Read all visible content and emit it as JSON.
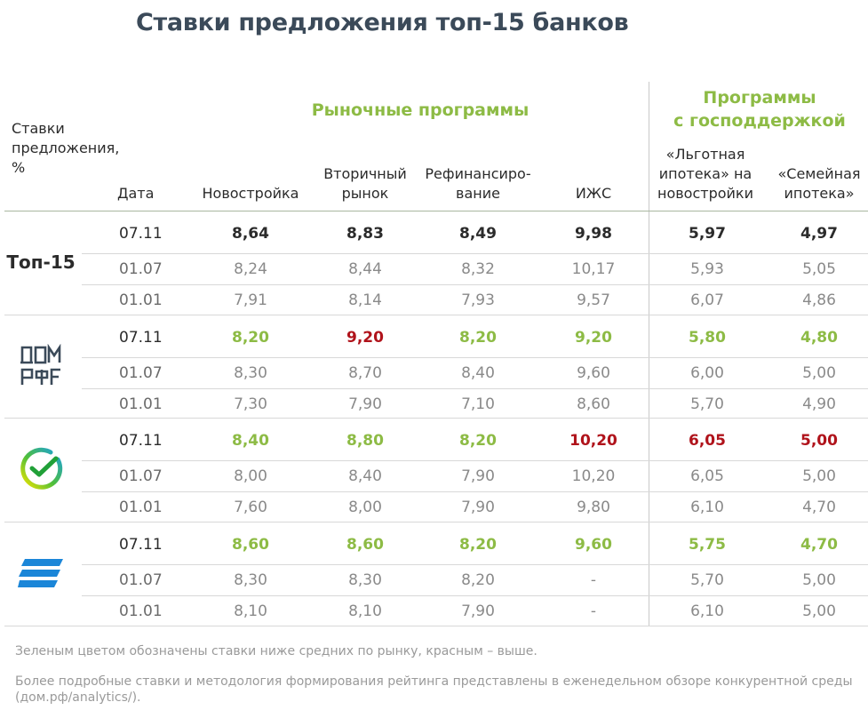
{
  "title": "Ставки предложения топ-15 банков",
  "groups": {
    "market": "Рыночные программы",
    "gov_line1": "Программы",
    "gov_line2": "с господдержкой"
  },
  "row_label": [
    "Ставки",
    "предложения,",
    "%"
  ],
  "columns": {
    "date": "Дата",
    "new": "Новостройка",
    "secondary_1": "Вторичный",
    "secondary_2": "рынок",
    "refi_1": "Рефинансиро-",
    "refi_2": "вание",
    "izhs": "ИЖС",
    "lgot_1": "«Льготная",
    "lgot_2": "ипотека» на",
    "lgot_3": "новостройки",
    "family_1": "«Семейная",
    "family_2": "ипотека»"
  },
  "banks": [
    {
      "name": "Топ-15",
      "icon": "top15-label",
      "rows": [
        {
          "date": "07.11",
          "values": [
            "8,64",
            "8,83",
            "8,49",
            "9,98",
            "5,97",
            "4,97"
          ],
          "status": [
            "cur",
            "cur",
            "cur",
            "cur",
            "cur",
            "cur"
          ]
        },
        {
          "date": "01.07",
          "values": [
            "8,24",
            "8,44",
            "8,32",
            "10,17",
            "5,93",
            "5,05"
          ],
          "status": [
            "old",
            "old",
            "old",
            "old",
            "old",
            "old"
          ]
        },
        {
          "date": "01.01",
          "values": [
            "7,91",
            "8,14",
            "7,93",
            "9,57",
            "6,07",
            "4,86"
          ],
          "status": [
            "old",
            "old",
            "old",
            "old",
            "old",
            "old"
          ]
        }
      ]
    },
    {
      "name": "",
      "icon": "dom-rf-logo-icon",
      "rows": [
        {
          "date": "07.11",
          "values": [
            "8,20",
            "9,20",
            "8,20",
            "9,20",
            "5,80",
            "4,80"
          ],
          "status": [
            "green",
            "red",
            "green",
            "green",
            "green",
            "green"
          ]
        },
        {
          "date": "01.07",
          "values": [
            "8,30",
            "8,70",
            "8,40",
            "9,60",
            "6,00",
            "5,00"
          ],
          "status": [
            "old",
            "old",
            "old",
            "old",
            "old",
            "old"
          ]
        },
        {
          "date": "01.01",
          "values": [
            "7,30",
            "7,90",
            "7,10",
            "8,60",
            "5,70",
            "4,90"
          ],
          "status": [
            "old",
            "old",
            "old",
            "old",
            "old",
            "old"
          ]
        }
      ]
    },
    {
      "name": "",
      "icon": "sber-logo-icon",
      "rows": [
        {
          "date": "07.11",
          "values": [
            "8,40",
            "8,80",
            "8,20",
            "10,20",
            "6,05",
            "5,00"
          ],
          "status": [
            "green",
            "green",
            "green",
            "red",
            "red",
            "red"
          ]
        },
        {
          "date": "01.07",
          "values": [
            "8,00",
            "8,40",
            "7,90",
            "10,20",
            "6,05",
            "5,00"
          ],
          "status": [
            "old",
            "old",
            "old",
            "old",
            "old",
            "old"
          ]
        },
        {
          "date": "01.01",
          "values": [
            "7,60",
            "8,00",
            "7,90",
            "9,80",
            "6,10",
            "4,70"
          ],
          "status": [
            "old",
            "old",
            "old",
            "old",
            "old",
            "old"
          ]
        }
      ]
    },
    {
      "name": "",
      "icon": "vtb-logo-icon",
      "rows": [
        {
          "date": "07.11",
          "values": [
            "8,60",
            "8,60",
            "8,20",
            "9,60",
            "5,75",
            "4,70"
          ],
          "status": [
            "green",
            "green",
            "green",
            "green",
            "green",
            "green"
          ]
        },
        {
          "date": "01.07",
          "values": [
            "8,30",
            "8,30",
            "8,20",
            "-",
            "5,70",
            "5,00"
          ],
          "status": [
            "old",
            "old",
            "old",
            "old",
            "old",
            "old"
          ]
        },
        {
          "date": "01.01",
          "values": [
            "8,10",
            "8,10",
            "7,90",
            "-",
            "6,10",
            "5,00"
          ],
          "status": [
            "old",
            "old",
            "old",
            "old",
            "old",
            "old"
          ]
        }
      ]
    }
  ],
  "notes": {
    "legend": "Зеленым цветом обозначены ставки ниже средних по рынку, красным – выше.",
    "more_1": "Более подробные ставки и методология формирования рейтинга представлены в еженедельном обзоре конкурентной среды",
    "more_2": "(дом.рф/analytics/)."
  },
  "colors": {
    "green": "#8dbb45",
    "red": "#b0131b",
    "title": "#3b4a59"
  }
}
